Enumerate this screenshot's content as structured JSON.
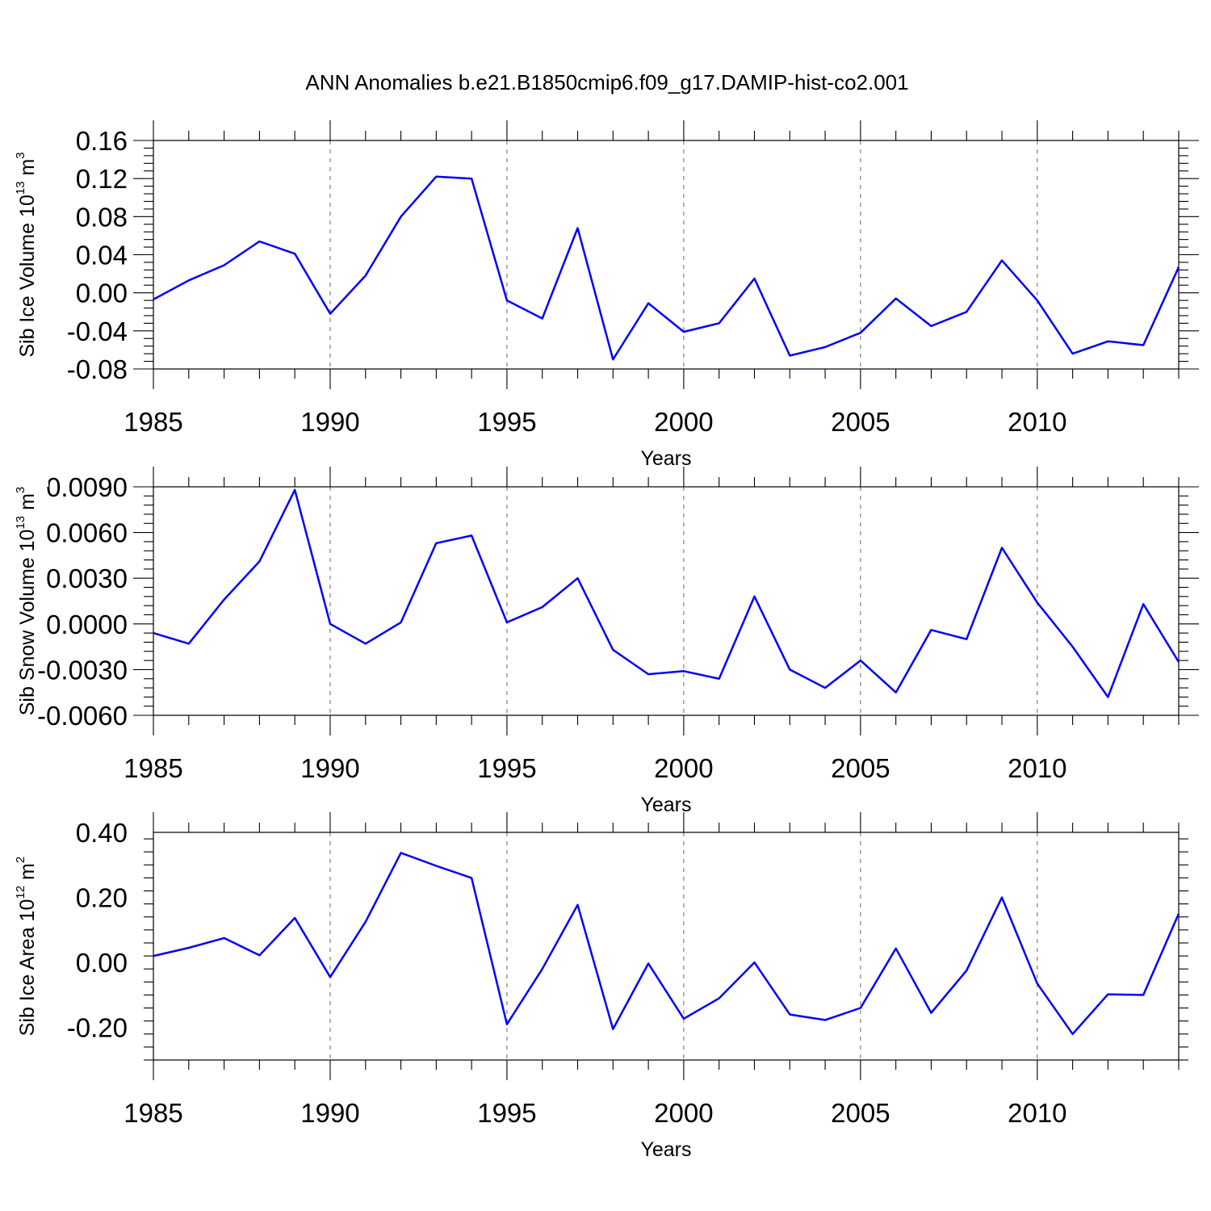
{
  "chart_data": {
    "title": "ANN Anomalies b.e21.B1850cmip6.f09_g17.DAMIP-hist-co2.001",
    "colors": {
      "line": "#0000ff",
      "grid": "#666666",
      "frame": "#000000"
    },
    "panels": [
      {
        "type": "line",
        "ylabel": {
          "text": "Sib Ice Volume 10",
          "exp": "13",
          "unit": " m",
          "unit_exp": "3"
        },
        "xlabel": "Years",
        "xlim": [
          1985,
          2014
        ],
        "ylim": [
          -0.08,
          0.16
        ],
        "xticks": [
          1985,
          1990,
          1995,
          2000,
          2005,
          2010
        ],
        "xtick_labels": [
          "1985",
          "1990",
          "1995",
          "2000",
          "2005",
          "2010"
        ],
        "yticks": [
          -0.08,
          -0.04,
          0.0,
          0.04,
          0.08,
          0.12,
          0.16
        ],
        "ytick_labels": [
          "-0.08",
          "-0.04",
          "0.00",
          "0.04",
          "0.08",
          "0.12",
          "0.16"
        ],
        "grid": "vertical dashed at major x ticks",
        "x": [
          1985,
          1986,
          1987,
          1988,
          1989,
          1990,
          1991,
          1992,
          1993,
          1994,
          1995,
          1996,
          1997,
          1998,
          1999,
          2000,
          2001,
          2002,
          2003,
          2004,
          2005,
          2006,
          2007,
          2008,
          2009,
          2010,
          2011,
          2012,
          2013,
          2014
        ],
        "values": [
          -0.007,
          0.013,
          0.029,
          0.054,
          0.041,
          -0.022,
          0.018,
          0.08,
          0.122,
          0.12,
          -0.008,
          -0.027,
          0.068,
          -0.07,
          -0.011,
          -0.041,
          -0.032,
          0.015,
          -0.066,
          -0.057,
          -0.042,
          -0.006,
          -0.035,
          -0.02,
          0.034,
          -0.008,
          -0.064,
          -0.051,
          -0.055,
          0.027
        ]
      },
      {
        "type": "line",
        "ylabel": {
          "text": "Sib Snow Volume 10",
          "exp": "13",
          "unit": " m",
          "unit_exp": "3"
        },
        "xlabel": "Years",
        "xlim": [
          1985,
          2014
        ],
        "ylim": [
          -0.006,
          0.009
        ],
        "xticks": [
          1985,
          1990,
          1995,
          2000,
          2005,
          2010
        ],
        "xtick_labels": [
          "1985",
          "1990",
          "1995",
          "2000",
          "2005",
          "2010"
        ],
        "yticks": [
          -0.006,
          -0.003,
          0.0,
          0.003,
          0.006,
          0.009
        ],
        "ytick_labels": [
          "-0.0060",
          "-0.0030",
          "0.0000",
          "0.0030",
          "0.0060",
          "0.0090"
        ],
        "grid": "vertical dashed at major x ticks",
        "x": [
          1985,
          1986,
          1987,
          1988,
          1989,
          1990,
          1991,
          1992,
          1993,
          1994,
          1995,
          1996,
          1997,
          1998,
          1999,
          2000,
          2001,
          2002,
          2003,
          2004,
          2005,
          2006,
          2007,
          2008,
          2009,
          2010,
          2011,
          2012,
          2013,
          2014
        ],
        "values": [
          -0.0006,
          -0.0013,
          0.0016,
          0.0041,
          0.0088,
          0.0,
          -0.0013,
          0.0001,
          0.0053,
          0.0058,
          0.0001,
          0.0011,
          0.003,
          -0.0017,
          -0.0033,
          -0.0031,
          -0.0036,
          0.0018,
          -0.003,
          -0.0042,
          -0.0024,
          -0.0045,
          -0.0004,
          -0.001,
          0.005,
          0.0014,
          -0.0015,
          -0.0048,
          0.0013,
          -0.0025
        ]
      },
      {
        "type": "line",
        "ylabel": {
          "text": "Sib Ice Area 10",
          "exp": "12",
          "unit": " m",
          "unit_exp": "2"
        },
        "xlabel": "Years",
        "xlim": [
          1985,
          2014
        ],
        "ylim": [
          -0.3,
          0.4
        ],
        "xticks": [
          1985,
          1990,
          1995,
          2000,
          2005,
          2010
        ],
        "xtick_labels": [
          "1985",
          "1990",
          "1995",
          "2000",
          "2005",
          "2010"
        ],
        "yticks": [
          -0.2,
          0.0,
          0.2,
          0.4
        ],
        "ytick_labels": [
          "-0.20",
          "0.00",
          "0.20",
          "0.40"
        ],
        "grid": "vertical dashed at major x ticks",
        "x": [
          1985,
          1986,
          1987,
          1988,
          1989,
          1990,
          1991,
          1992,
          1993,
          1994,
          1995,
          1996,
          1997,
          1998,
          1999,
          2000,
          2001,
          2002,
          2003,
          2004,
          2005,
          2006,
          2007,
          2008,
          2009,
          2010,
          2011,
          2012,
          2013,
          2014
        ],
        "values": [
          0.02,
          0.045,
          0.075,
          0.022,
          0.137,
          -0.045,
          0.125,
          0.337,
          0.297,
          0.26,
          -0.19,
          -0.02,
          0.177,
          -0.205,
          -0.003,
          -0.173,
          -0.11,
          0.0,
          -0.16,
          -0.177,
          -0.14,
          0.043,
          -0.155,
          -0.025,
          0.2,
          -0.065,
          -0.22,
          -0.098,
          -0.1,
          0.15
        ]
      }
    ]
  }
}
